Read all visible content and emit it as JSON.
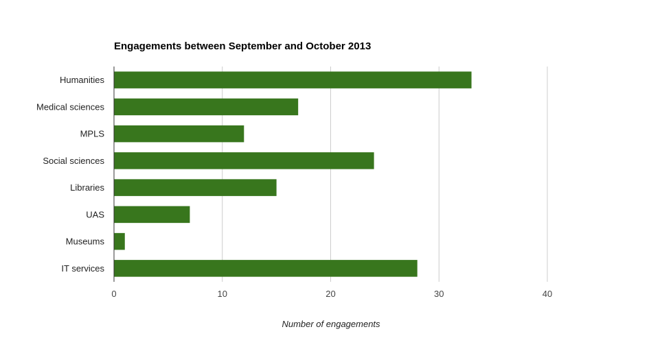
{
  "chart_data": {
    "type": "bar",
    "orientation": "horizontal",
    "title": "Engagements between September and October 2013",
    "xlabel": "Number of engagements",
    "ylabel": "",
    "categories": [
      "Humanities",
      "Medical sciences",
      "MPLS",
      "Social sciences",
      "Libraries",
      "UAS",
      "Museums",
      "IT services"
    ],
    "values": [
      33,
      17,
      12,
      24,
      15,
      7,
      1,
      28
    ],
    "xlim": [
      0,
      40
    ],
    "x_ticks": [
      0,
      10,
      20,
      30,
      40
    ],
    "grid": true,
    "legend": "none",
    "bar_color": "#38761d",
    "grid_color": "#cccccc",
    "axis_color": "#333333"
  }
}
